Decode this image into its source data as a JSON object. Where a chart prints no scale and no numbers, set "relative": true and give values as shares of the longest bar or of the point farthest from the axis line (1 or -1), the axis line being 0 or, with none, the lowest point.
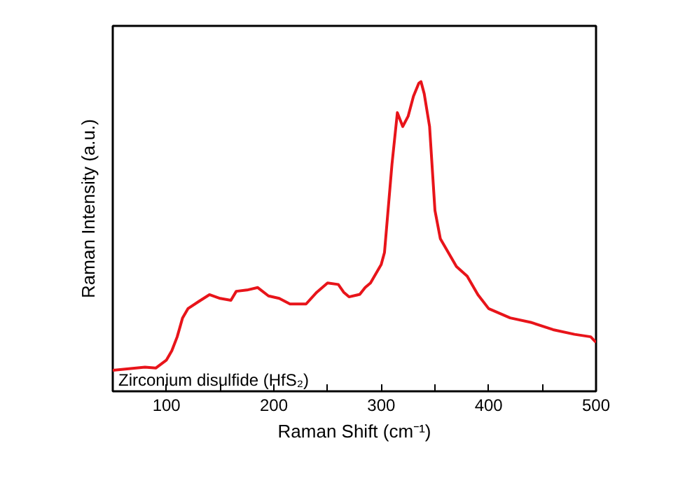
{
  "chart_data": {
    "type": "line",
    "relative": true,
    "xlabel": "Raman Shift (cm⁻¹)",
    "ylabel": "Raman Intensity (a.u.)",
    "annotations": [
      "Zirconium disulfide (HfS₂)"
    ],
    "xlim": [
      50,
      500
    ],
    "xticks": [
      {
        "value": 50,
        "label": null
      },
      100,
      {
        "value": 150,
        "label": null
      },
      200,
      {
        "value": 250,
        "label": null
      },
      300,
      {
        "value": 350,
        "label": null
      },
      400,
      {
        "value": 450,
        "label": null
      },
      500
    ],
    "grid": false,
    "marker": "none",
    "line_style": "solid",
    "x": [
      50,
      80,
      90,
      100,
      105,
      110,
      115,
      120,
      130,
      140,
      150,
      160,
      165,
      175,
      185,
      195,
      205,
      215,
      230,
      240,
      250,
      260,
      265,
      270,
      280,
      285,
      290,
      300,
      303,
      310,
      315,
      320,
      325,
      330,
      335,
      337,
      340,
      345,
      350,
      355,
      360,
      370,
      380,
      390,
      400,
      420,
      440,
      460,
      480,
      495,
      500
    ],
    "series": [
      {
        "color": "#e8141a",
        "values": [
          0.068,
          0.078,
          0.075,
          0.101,
          0.131,
          0.176,
          0.237,
          0.267,
          0.29,
          0.312,
          0.3,
          0.294,
          0.323,
          0.327,
          0.335,
          0.308,
          0.3,
          0.282,
          0.282,
          0.32,
          0.35,
          0.345,
          0.32,
          0.305,
          0.313,
          0.335,
          0.35,
          0.41,
          0.448,
          0.734,
          0.9,
          0.855,
          0.888,
          0.953,
          0.995,
          1.0,
          0.961,
          0.855,
          0.584,
          0.493,
          0.463,
          0.403,
          0.372,
          0.312,
          0.267,
          0.237,
          0.222,
          0.199,
          0.184,
          0.176,
          0.158
        ]
      }
    ]
  }
}
